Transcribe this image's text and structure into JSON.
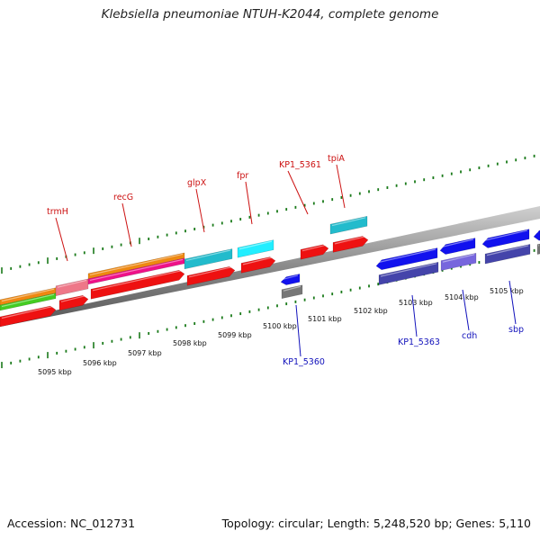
{
  "title": "Klebsiella pneumoniae NTUH-K2044, complete genome",
  "footer": {
    "accession": "Accession: NC_012731",
    "summary": "Topology: circular; Length: 5,248,520 bp; Genes: 5,110"
  },
  "colors": {
    "backbone": "#8c8c8c",
    "tick": "#1a7a1a",
    "forward_label": "#cc1111",
    "reverse_label": "#1111bb",
    "red": "#ee1111",
    "orange": "#ee8811",
    "green": "#44cc22",
    "pink": "#ee7788",
    "magenta": "#ee1188",
    "teal": "#22bbcc",
    "cyan": "#22eeff",
    "blue": "#1111ee",
    "slate": "#4444aa",
    "periwinkle": "#7766dd",
    "gray": "#777777"
  },
  "tick_labels": [
    "5095 kbp",
    "5096 kbp",
    "5097 kbp",
    "5098 kbp",
    "5099 kbp",
    "5100 kbp",
    "5101 kbp",
    "5102 kbp",
    "5103 kbp",
    "5104 kbp",
    "5105 kbp"
  ],
  "forward_genes": [
    "trmH",
    "recG",
    "glpX",
    "fpr",
    "KP1_5361",
    "tpiA"
  ],
  "reverse_genes": [
    "KP1_5360",
    "KP1_5363",
    "cdh",
    "sbp"
  ]
}
